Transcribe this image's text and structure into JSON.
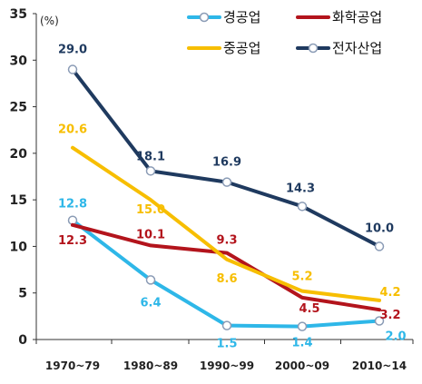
{
  "chart_data": {
    "type": "line",
    "title": "",
    "xlabel": "",
    "ylabel": "",
    "unit": "(%)",
    "categories": [
      "1970~79",
      "1980~89",
      "1990~99",
      "2000~09",
      "2010~14"
    ],
    "ylim": [
      0,
      35
    ],
    "yticks": [
      "0",
      "5",
      "10",
      "15",
      "20",
      "25",
      "30",
      "35"
    ],
    "grid": false,
    "legend_position": "top-right",
    "series": [
      {
        "name": "경공업",
        "color": "#2eb7e8",
        "values": [
          12.8,
          6.4,
          1.5,
          1.4,
          2.0
        ],
        "labels": [
          "12.8",
          "6.4",
          "1.5",
          "1.4",
          "2.0"
        ]
      },
      {
        "name": "화학공업",
        "color": "#b3141c",
        "values": [
          12.3,
          10.1,
          9.3,
          4.5,
          3.2
        ],
        "labels": [
          "12.3",
          "10.1",
          "9.3",
          "4.5",
          "3.2"
        ]
      },
      {
        "name": "중공업",
        "color": "#f7be00",
        "values": [
          20.6,
          15.0,
          8.6,
          5.2,
          4.2
        ],
        "labels": [
          "20.6",
          "15.0",
          "8.6",
          "5.2",
          "4.2"
        ]
      },
      {
        "name": "전자산업",
        "color": "#1f3a5f",
        "values": [
          29.0,
          18.1,
          16.9,
          14.3,
          10.0
        ],
        "labels": [
          "29.0",
          "18.1",
          "16.9",
          "14.3",
          "10.0"
        ]
      }
    ]
  }
}
